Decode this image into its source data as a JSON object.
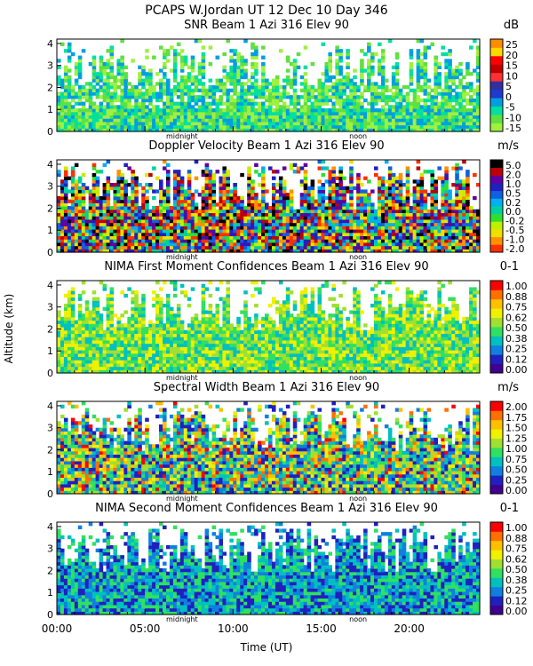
{
  "header": {
    "line1": "PCAPS W.Jordan UT  12 Dec 10 Day 346"
  },
  "x_axis": {
    "label": "Time (UT)",
    "range": [
      0,
      24
    ],
    "tick_labels": [
      "00:00",
      "05:00",
      "10:00",
      "15:00",
      "20:00"
    ],
    "tick_values": [
      0,
      5,
      10,
      15,
      20
    ],
    "markers": [
      {
        "label": "midnight",
        "value": 7.1
      },
      {
        "label": "noon",
        "value": 17.1
      }
    ]
  },
  "y_axis": {
    "label": "Altitude (km)",
    "range": [
      0,
      4.2
    ],
    "tick_labels": [
      "0",
      "1",
      "2",
      "3",
      "4"
    ],
    "tick_values": [
      0,
      1,
      2,
      3,
      4
    ]
  },
  "chart_data": [
    {
      "type": "heatmap",
      "title": "SNR Beam 1 Azi 316 Elev 90",
      "unit": "dB",
      "colorbar_labels": [
        "25",
        "20",
        "15",
        "10",
        "5",
        "0",
        "-5",
        "-10",
        "-15"
      ],
      "colors": [
        "#ff8c00",
        "#ffd700",
        "#ff0000",
        "#c00000",
        "#ff3030",
        "#3030a0",
        "#1f3ad0",
        "#00a0e0",
        "#00e0a0",
        "#60e040",
        "#a0f040"
      ]
    },
    {
      "type": "heatmap",
      "title": "Doppler Velocity Beam 1 Azi 316 Elev 90",
      "unit": "m/s",
      "colorbar_labels": [
        "5.0",
        "2.0",
        "1.0",
        "0.5",
        "0.2",
        "0.0",
        "-0.2",
        "-0.5",
        "-1.0",
        "-2.0"
      ],
      "colors": [
        "#000000",
        "#c00000",
        "#6000a0",
        "#2020c0",
        "#1060e0",
        "#00b0f0",
        "#00d0a0",
        "#30e030",
        "#c0f000",
        "#f0e000",
        "#ff9000",
        "#ff3000"
      ]
    },
    {
      "type": "heatmap",
      "title": "NIMA First Moment Confidences Beam 1 Azi 316 Elev 90",
      "unit": "0-1",
      "colorbar_labels": [
        "1.00",
        "0.88",
        "0.75",
        "0.62",
        "0.50",
        "0.38",
        "0.25",
        "0.12",
        "0.00"
      ],
      "colors": [
        "#ff0000",
        "#ff7000",
        "#ffc000",
        "#f0f000",
        "#a0e030",
        "#30e060",
        "#00c0c0",
        "#1080e0",
        "#2020c0",
        "#400090"
      ]
    },
    {
      "type": "heatmap",
      "title": "Spectral Width Beam 1 Azi 316 Elev 90",
      "unit": "m/s",
      "colorbar_labels": [
        "2.00",
        "1.75",
        "1.50",
        "1.25",
        "1.00",
        "0.75",
        "0.50",
        "0.25",
        "0.00"
      ],
      "colors": [
        "#ff0000",
        "#ff7000",
        "#ffc000",
        "#f0f000",
        "#a0e030",
        "#30e060",
        "#00c0c0",
        "#1080e0",
        "#2020c0",
        "#400090"
      ]
    },
    {
      "type": "heatmap",
      "title": "NIMA Second Moment Confidences Beam 1 Azi 316 Elev 90",
      "unit": "0-1",
      "colorbar_labels": [
        "1.00",
        "0.88",
        "0.75",
        "0.62",
        "0.50",
        "0.38",
        "0.25",
        "0.12",
        "0.00"
      ],
      "colors": [
        "#ff0000",
        "#ff7000",
        "#ffc000",
        "#f0f000",
        "#a0e030",
        "#30e060",
        "#00c0c0",
        "#1080e0",
        "#2020c0",
        "#400090"
      ]
    }
  ]
}
